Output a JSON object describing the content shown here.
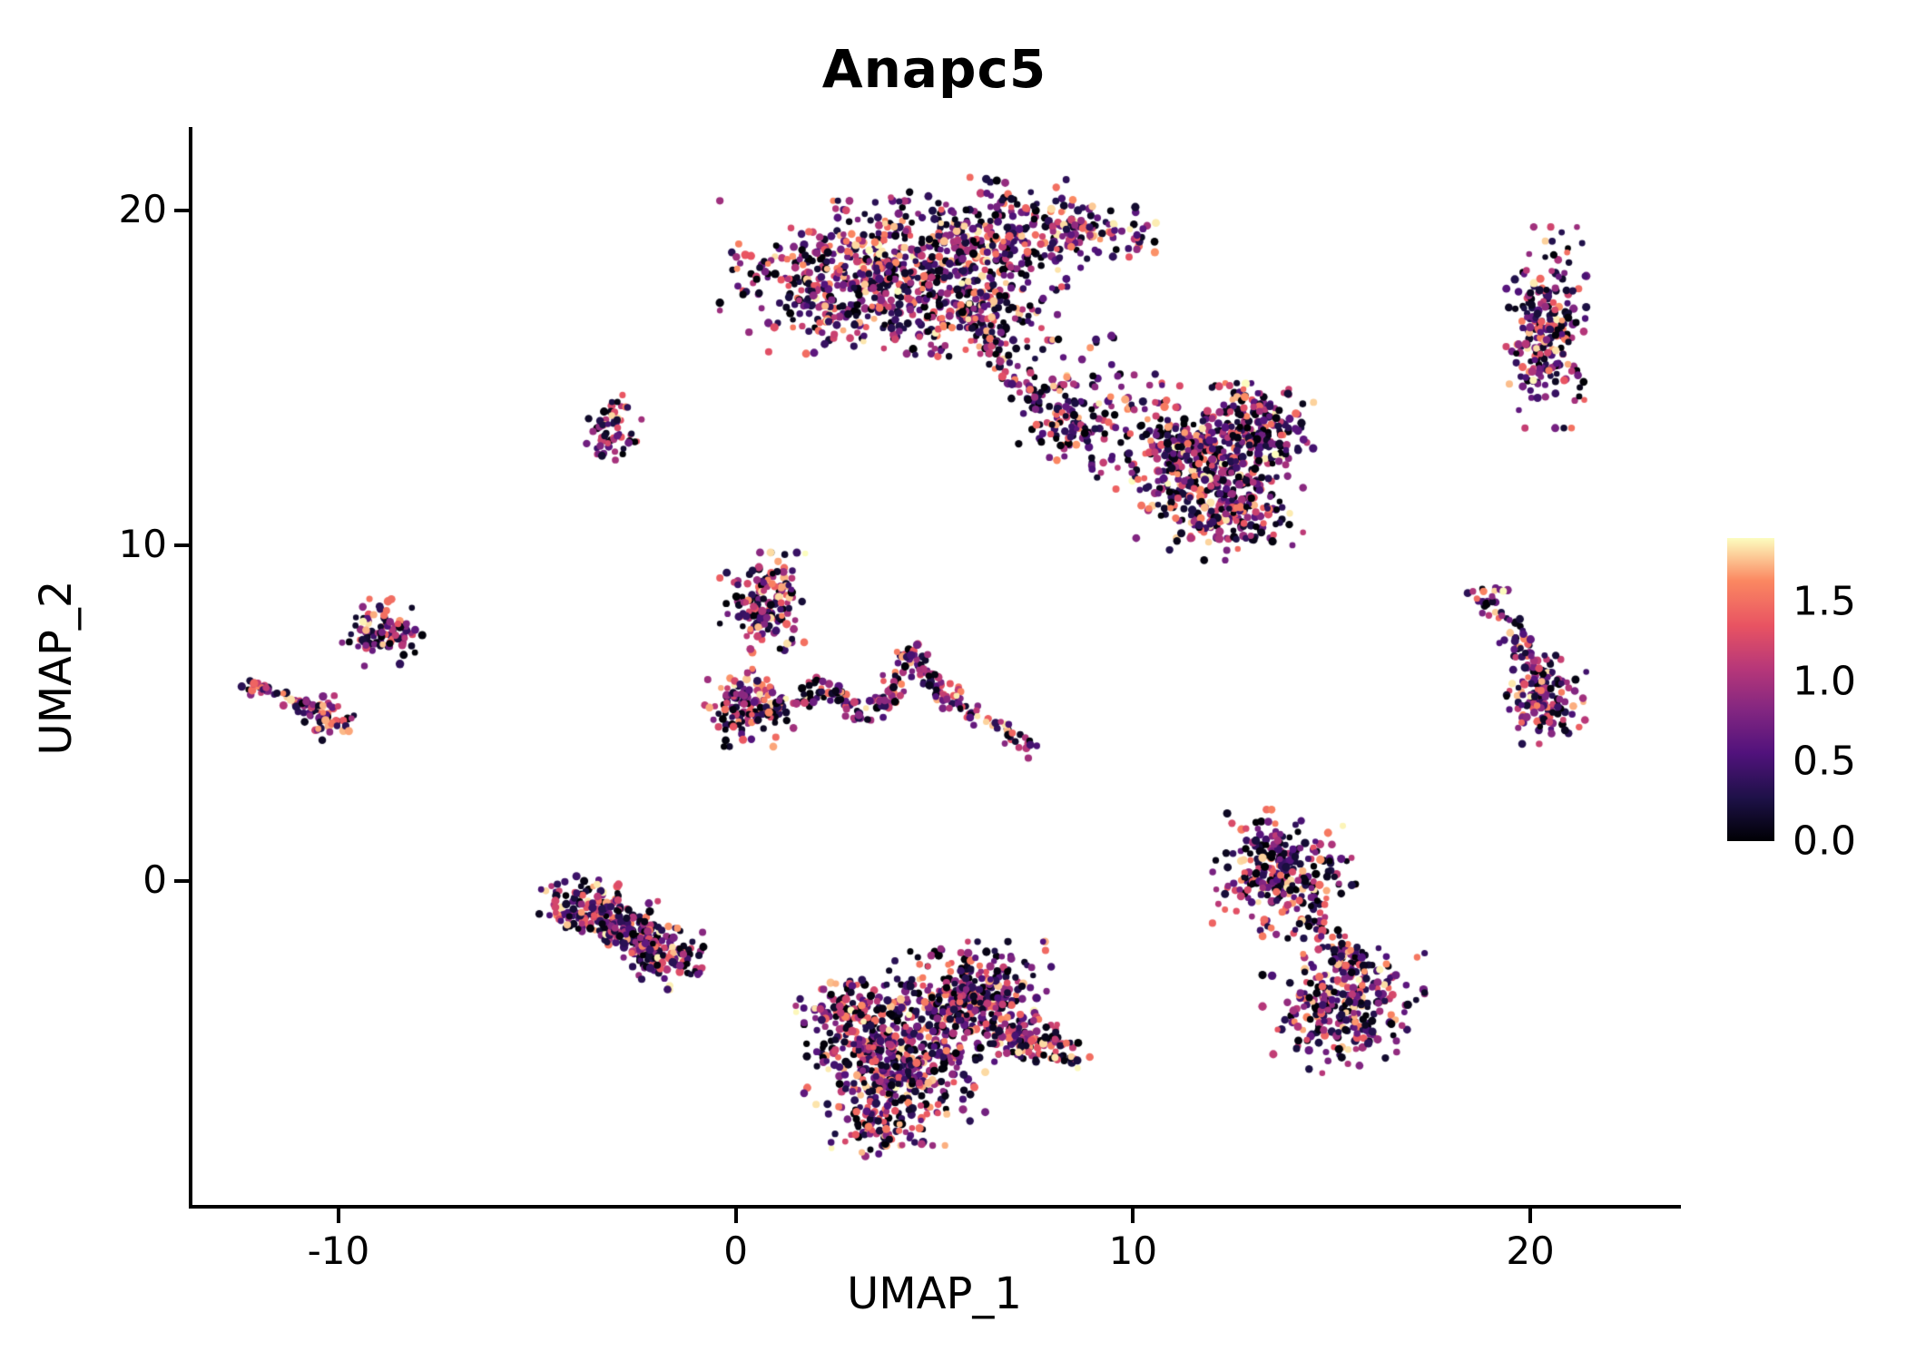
{
  "title": "Anapc5",
  "chart_data": {
    "type": "scatter",
    "title": "Anapc5",
    "xlabel": "UMAP_1",
    "ylabel": "UMAP_2",
    "xlim": [
      -13.7,
      23.7
    ],
    "ylim": [
      -9.7,
      22.4
    ],
    "grid": false,
    "x_ticks": [
      {
        "value": -10,
        "label": "-10"
      },
      {
        "value": 0,
        "label": "0"
      },
      {
        "value": 10,
        "label": "10"
      },
      {
        "value": 20,
        "label": "20"
      }
    ],
    "y_ticks": [
      {
        "value": 0,
        "label": "0"
      },
      {
        "value": 10,
        "label": "10"
      },
      {
        "value": 20,
        "label": "20"
      }
    ],
    "colorbar": {
      "vmin": 0.0,
      "vmax": 1.9,
      "ticks": [
        {
          "value": 0.0,
          "label": "0.0"
        },
        {
          "value": 0.5,
          "label": "0.5"
        },
        {
          "value": 1.0,
          "label": "1.0"
        },
        {
          "value": 1.5,
          "label": "1.5"
        }
      ],
      "colormap": "magma",
      "stops": [
        [
          0.0,
          "#000004"
        ],
        [
          0.14,
          "#1d1147"
        ],
        [
          0.29,
          "#51127c"
        ],
        [
          0.43,
          "#822681"
        ],
        [
          0.57,
          "#b73779"
        ],
        [
          0.71,
          "#e85362"
        ],
        [
          0.86,
          "#fb8861"
        ],
        [
          1.0,
          "#fcfdbf"
        ]
      ]
    },
    "seed": 42,
    "value_distribution": {
      "power": 1.6,
      "max": 1.9
    },
    "point_radius": {
      "min": 3.2,
      "jitter": 1.5
    },
    "clusters": [
      {
        "name": "top-mass-left",
        "type": "blob",
        "cx": 3.2,
        "cy": 18.0,
        "sx": 1.5,
        "sy": 0.95,
        "n": 520
      },
      {
        "name": "top-mass-upper-right",
        "type": "blob",
        "cx": 6.4,
        "cy": 19.3,
        "sx": 1.1,
        "sy": 0.7,
        "n": 260
      },
      {
        "name": "top-mass-lower",
        "type": "blob",
        "cx": 5.7,
        "cy": 17.2,
        "sx": 1.1,
        "sy": 0.65,
        "n": 200
      },
      {
        "name": "top-right-arm",
        "type": "arm",
        "pts": [
          [
            7.6,
            19.6
          ],
          [
            9.2,
            19.3
          ],
          [
            10.4,
            19.2
          ]
        ],
        "jitter": 0.35,
        "n": 90
      },
      {
        "name": "top-descending-arm",
        "type": "arm",
        "pts": [
          [
            6.2,
            16.4
          ],
          [
            6.9,
            15.3
          ],
          [
            7.9,
            14.3
          ],
          [
            8.3,
            13.6
          ]
        ],
        "jitter": 0.3,
        "n": 90
      },
      {
        "name": "mid-bridge-blob",
        "type": "blob",
        "cx": 8.3,
        "cy": 13.5,
        "sx": 0.5,
        "sy": 0.4,
        "n": 70
      },
      {
        "name": "sparse-bridge",
        "type": "arm",
        "pts": [
          [
            8.0,
            16.0
          ],
          [
            9.3,
            14.6
          ],
          [
            10.2,
            13.9
          ]
        ],
        "jitter": 0.55,
        "n": 45
      },
      {
        "name": "right-upper-mass",
        "type": "blob",
        "cx": 11.6,
        "cy": 12.5,
        "sx": 1.1,
        "sy": 0.95,
        "n": 430
      },
      {
        "name": "right-upper-lobe",
        "type": "blob",
        "cx": 13.2,
        "cy": 13.4,
        "sx": 0.6,
        "sy": 0.6,
        "n": 140
      },
      {
        "name": "right-upper-lower-lobe",
        "type": "blob",
        "cx": 12.6,
        "cy": 11.0,
        "sx": 0.7,
        "sy": 0.6,
        "n": 140
      },
      {
        "name": "far-right-top-blob",
        "type": "blob",
        "cx": 20.4,
        "cy": 16.5,
        "sx": 0.42,
        "sy": 1.25,
        "n": 230
      },
      {
        "name": "small-mid-left-blob",
        "type": "blob",
        "cx": -3.1,
        "cy": 13.4,
        "sx": 0.33,
        "sy": 0.5,
        "n": 60
      },
      {
        "name": "center-top-blob",
        "type": "blob",
        "cx": 0.8,
        "cy": 8.3,
        "sx": 0.5,
        "sy": 0.62,
        "n": 150
      },
      {
        "name": "center-left-blob",
        "type": "blob",
        "cx": 0.3,
        "cy": 5.2,
        "sx": 0.48,
        "sy": 0.5,
        "n": 130
      },
      {
        "name": "center-wavy-arm",
        "type": "arm",
        "pts": [
          [
            0.6,
            5.1
          ],
          [
            1.6,
            5.5
          ],
          [
            2.4,
            5.8
          ],
          [
            3.1,
            4.9
          ],
          [
            3.7,
            5.2
          ]
        ],
        "jitter": 0.18,
        "n": 80
      },
      {
        "name": "center-peak-arm",
        "type": "arm",
        "pts": [
          [
            3.7,
            5.1
          ],
          [
            4.4,
            6.9
          ],
          [
            5.0,
            5.9
          ],
          [
            5.9,
            5.0
          ],
          [
            6.8,
            4.4
          ],
          [
            7.5,
            3.9
          ]
        ],
        "jitter": 0.16,
        "n": 150
      },
      {
        "name": "far-left-arm",
        "type": "arm",
        "pts": [
          [
            -12.2,
            5.9
          ],
          [
            -11.4,
            5.5
          ],
          [
            -10.6,
            5.0
          ]
        ],
        "jitter": 0.14,
        "n": 55
      },
      {
        "name": "far-left-blob",
        "type": "blob",
        "cx": -10.3,
        "cy": 4.9,
        "sx": 0.3,
        "sy": 0.3,
        "n": 45
      },
      {
        "name": "left-small-blob",
        "type": "blob",
        "cx": -8.9,
        "cy": 7.4,
        "sx": 0.42,
        "sy": 0.42,
        "n": 90
      },
      {
        "name": "far-right-diagonal-arm",
        "type": "arm",
        "pts": [
          [
            18.6,
            8.6
          ],
          [
            19.4,
            7.6
          ],
          [
            20.0,
            6.6
          ],
          [
            20.4,
            5.8
          ]
        ],
        "jitter": 0.17,
        "n": 70
      },
      {
        "name": "far-right-mid-blob",
        "type": "blob",
        "cx": 20.4,
        "cy": 5.4,
        "sx": 0.42,
        "sy": 0.55,
        "n": 130
      },
      {
        "name": "far-right-outliers",
        "type": "blob",
        "cx": 19.2,
        "cy": 8.6,
        "sx": 0.15,
        "sy": 0.15,
        "n": 8
      },
      {
        "name": "bottom-left-blob-a",
        "type": "blob",
        "cx": -3.6,
        "cy": -0.9,
        "sx": 0.6,
        "sy": 0.4,
        "n": 150,
        "rot": -20
      },
      {
        "name": "bottom-left-arm",
        "type": "arm",
        "pts": [
          [
            -3.2,
            -1.1
          ],
          [
            -2.6,
            -1.6
          ],
          [
            -2.0,
            -2.1
          ]
        ],
        "jitter": 0.25,
        "n": 80
      },
      {
        "name": "bottom-left-blob-b",
        "type": "blob",
        "cx": -1.9,
        "cy": -2.1,
        "sx": 0.55,
        "sy": 0.4,
        "n": 130,
        "rot": -25
      },
      {
        "name": "bottom-center-main",
        "type": "blob",
        "cx": 4.0,
        "cy": -5.5,
        "sx": 0.95,
        "sy": 1.0,
        "n": 480
      },
      {
        "name": "bottom-center-upper",
        "type": "blob",
        "cx": 5.9,
        "cy": -3.5,
        "sx": 0.85,
        "sy": 0.7,
        "n": 320
      },
      {
        "name": "bottom-center-right-arm",
        "type": "arm",
        "pts": [
          [
            6.6,
            -4.5
          ],
          [
            7.5,
            -4.9
          ],
          [
            8.4,
            -5.1
          ]
        ],
        "jitter": 0.3,
        "n": 110
      },
      {
        "name": "bottom-center-left-lobe",
        "type": "blob",
        "cx": 2.7,
        "cy": -3.9,
        "sx": 0.5,
        "sy": 0.5,
        "n": 90
      },
      {
        "name": "bottom-center-tail",
        "type": "blob",
        "cx": 3.6,
        "cy": -7.3,
        "sx": 0.5,
        "sy": 0.4,
        "n": 60
      },
      {
        "name": "bottom-right-top-lobe",
        "type": "blob",
        "cx": 13.8,
        "cy": 0.2,
        "sx": 0.75,
        "sy": 0.8,
        "n": 260
      },
      {
        "name": "bottom-right-bridge",
        "type": "arm",
        "pts": [
          [
            14.4,
            -0.9
          ],
          [
            15.0,
            -1.8
          ],
          [
            15.5,
            -2.6
          ]
        ],
        "jitter": 0.2,
        "n": 50
      },
      {
        "name": "bottom-right-bottom-lobe",
        "type": "blob",
        "cx": 15.3,
        "cy": -3.7,
        "sx": 0.85,
        "sy": 0.85,
        "n": 300
      }
    ]
  }
}
